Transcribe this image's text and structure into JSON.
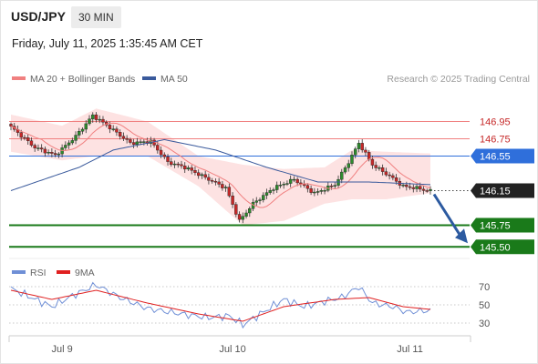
{
  "header": {
    "symbol": "USD/JPY",
    "interval": "30 MIN",
    "datetime": "Friday, July 11, 2025 1:35:45 AM CET"
  },
  "legend": {
    "ma20_label": "MA 20 + Bollinger Bands",
    "ma50_label": "MA 50",
    "copyright": "Research © 2025 Trading Central",
    "rsi_label": "RSI",
    "rsi_ma_label": "9MA"
  },
  "colors": {
    "bull": "#2e8b2e",
    "bear": "#c62828",
    "ma20": "#f08080",
    "ma50": "#3a5a9c",
    "band": "#fde2e2",
    "resistance": "#f08080",
    "pivot": "#2f6fdb",
    "support": "#1a7a1a",
    "rsi": "#6f8fd6",
    "rsi_ma": "#e02020",
    "arrow": "#2c5aa0"
  },
  "chart_data": [
    {
      "type": "line",
      "subtype": "candlestick",
      "y_unit": "JPY per USD",
      "x_ticks": [
        "Jul 9",
        "Jul 10",
        "Jul 11"
      ],
      "ylim": [
        145.45,
        147.05
      ],
      "levels": [
        {
          "value": 146.95,
          "label": "146.95",
          "kind": "resistance"
        },
        {
          "value": 146.75,
          "label": "146.75",
          "kind": "resistance"
        },
        {
          "value": 146.55,
          "label": "146.55",
          "kind": "pivot"
        },
        {
          "value": 146.15,
          "label": "146.15",
          "kind": "last"
        },
        {
          "value": 145.75,
          "label": "145.75",
          "kind": "support"
        },
        {
          "value": 145.5,
          "label": "145.50",
          "kind": "support"
        }
      ],
      "forecast": {
        "from": 146.15,
        "to": 145.5,
        "direction": "down"
      },
      "anchors": [
        {
          "t": 0,
          "v": 146.92
        },
        {
          "t": 8,
          "v": 146.65
        },
        {
          "t": 14,
          "v": 146.56
        },
        {
          "t": 20,
          "v": 146.78
        },
        {
          "t": 25,
          "v": 147.02
        },
        {
          "t": 30,
          "v": 146.88
        },
        {
          "t": 36,
          "v": 146.7
        },
        {
          "t": 42,
          "v": 146.72
        },
        {
          "t": 47,
          "v": 146.48
        },
        {
          "t": 52,
          "v": 146.42
        },
        {
          "t": 58,
          "v": 146.3
        },
        {
          "t": 64,
          "v": 146.18
        },
        {
          "t": 68,
          "v": 145.8
        },
        {
          "t": 72,
          "v": 146.0
        },
        {
          "t": 78,
          "v": 146.18
        },
        {
          "t": 84,
          "v": 146.28
        },
        {
          "t": 90,
          "v": 146.12
        },
        {
          "t": 96,
          "v": 146.22
        },
        {
          "t": 100,
          "v": 146.48
        },
        {
          "t": 103,
          "v": 146.7
        },
        {
          "t": 107,
          "v": 146.45
        },
        {
          "t": 112,
          "v": 146.32
        },
        {
          "t": 116,
          "v": 146.2
        },
        {
          "t": 120,
          "v": 146.18
        },
        {
          "t": 123,
          "v": 146.15
        }
      ],
      "ma50": [
        {
          "t": 0,
          "v": 146.15
        },
        {
          "t": 20,
          "v": 146.42
        },
        {
          "t": 30,
          "v": 146.62
        },
        {
          "t": 45,
          "v": 146.74
        },
        {
          "t": 60,
          "v": 146.62
        },
        {
          "t": 75,
          "v": 146.42
        },
        {
          "t": 90,
          "v": 146.25
        },
        {
          "t": 105,
          "v": 146.25
        },
        {
          "t": 123,
          "v": 146.22
        }
      ],
      "band_upper": [
        {
          "t": 0,
          "v": 147.03
        },
        {
          "t": 15,
          "v": 146.9
        },
        {
          "t": 25,
          "v": 147.1
        },
        {
          "t": 40,
          "v": 146.95
        },
        {
          "t": 55,
          "v": 146.55
        },
        {
          "t": 68,
          "v": 146.45
        },
        {
          "t": 80,
          "v": 146.4
        },
        {
          "t": 92,
          "v": 146.42
        },
        {
          "t": 100,
          "v": 146.62
        },
        {
          "t": 110,
          "v": 146.6
        },
        {
          "t": 123,
          "v": 146.58
        }
      ],
      "band_lower": [
        {
          "t": 0,
          "v": 146.6
        },
        {
          "t": 15,
          "v": 146.5
        },
        {
          "t": 25,
          "v": 146.55
        },
        {
          "t": 40,
          "v": 146.55
        },
        {
          "t": 55,
          "v": 146.2
        },
        {
          "t": 68,
          "v": 145.75
        },
        {
          "t": 80,
          "v": 145.8
        },
        {
          "t": 92,
          "v": 146.0
        },
        {
          "t": 100,
          "v": 146.05
        },
        {
          "t": 110,
          "v": 146.05
        },
        {
          "t": 123,
          "v": 146.12
        }
      ]
    },
    {
      "type": "line",
      "title": "RSI",
      "ylim": [
        20,
        80
      ],
      "y_ticks": [
        70,
        50,
        30
      ],
      "series": [
        {
          "name": "RSI",
          "points": [
            {
              "t": 0,
              "v": 68
            },
            {
              "t": 12,
              "v": 48
            },
            {
              "t": 18,
              "v": 60
            },
            {
              "t": 25,
              "v": 72
            },
            {
              "t": 32,
              "v": 58
            },
            {
              "t": 40,
              "v": 46
            },
            {
              "t": 50,
              "v": 40
            },
            {
              "t": 58,
              "v": 36
            },
            {
              "t": 64,
              "v": 38
            },
            {
              "t": 68,
              "v": 28
            },
            {
              "t": 74,
              "v": 42
            },
            {
              "t": 80,
              "v": 56
            },
            {
              "t": 86,
              "v": 48
            },
            {
              "t": 92,
              "v": 54
            },
            {
              "t": 97,
              "v": 58
            },
            {
              "t": 102,
              "v": 70
            },
            {
              "t": 106,
              "v": 52
            },
            {
              "t": 112,
              "v": 48
            },
            {
              "t": 116,
              "v": 42
            },
            {
              "t": 123,
              "v": 44
            }
          ]
        },
        {
          "name": "9MA",
          "points": [
            {
              "t": 0,
              "v": 66
            },
            {
              "t": 12,
              "v": 56
            },
            {
              "t": 25,
              "v": 66
            },
            {
              "t": 40,
              "v": 52
            },
            {
              "t": 55,
              "v": 40
            },
            {
              "t": 68,
              "v": 32
            },
            {
              "t": 80,
              "v": 48
            },
            {
              "t": 95,
              "v": 56
            },
            {
              "t": 105,
              "v": 58
            },
            {
              "t": 115,
              "v": 48
            },
            {
              "t": 123,
              "v": 45
            }
          ]
        }
      ]
    }
  ]
}
